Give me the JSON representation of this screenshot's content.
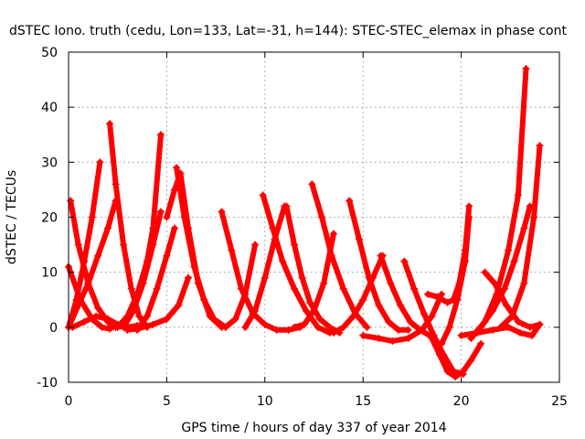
{
  "chart_data": {
    "type": "scatter",
    "title": "dSTEC Iono. truth (cedu, Lon=133, Lat=-31, h=144): STEC-STEC_elemax in phase cont",
    "xlabel": "GPS time / hours of day 337 of year 2014",
    "ylabel": "dSTEC  / TECUs",
    "xlim": [
      0,
      25
    ],
    "ylim": [
      -10,
      50
    ],
    "xticks": [
      0,
      5,
      10,
      15,
      20,
      25
    ],
    "yticks": [
      -10,
      0,
      10,
      20,
      30,
      40,
      50
    ],
    "grid": true,
    "marker": "+",
    "color": "#ff0000",
    "series": [
      {
        "x": [
          0.0,
          0.6,
          1.2,
          1.7,
          2.1,
          2.5
        ],
        "y": [
          11.0,
          5.0,
          1.5,
          0.0,
          -0.3,
          0.5
        ]
      },
      {
        "x": [
          0.0,
          0.5,
          1.0,
          1.5,
          2.0,
          2.4
        ],
        "y": [
          0.0,
          4.0,
          8.0,
          13.0,
          18.0,
          23.0
        ]
      },
      {
        "x": [
          0.1,
          0.5,
          1.0,
          1.5,
          2.0,
          2.4,
          2.8
        ],
        "y": [
          23.0,
          15.0,
          8.0,
          3.5,
          1.0,
          0.0,
          0.2
        ]
      },
      {
        "x": [
          0.0,
          0.4,
          0.8,
          1.2,
          1.6
        ],
        "y": [
          0.0,
          5.0,
          12.0,
          20.0,
          30.0
        ]
      },
      {
        "x": [
          0.2,
          0.8,
          1.4,
          2.0,
          2.5,
          3.0,
          3.5
        ],
        "y": [
          0.0,
          1.0,
          2.0,
          1.5,
          0.5,
          0.0,
          0.3
        ]
      },
      {
        "x": [
          2.1,
          2.4,
          2.8,
          3.2,
          3.6,
          4.0
        ],
        "y": [
          37.0,
          26.0,
          15.0,
          7.0,
          2.0,
          0.0
        ]
      },
      {
        "x": [
          2.5,
          3.0,
          3.5,
          4.0,
          4.3,
          4.7
        ],
        "y": [
          0.0,
          2.0,
          6.0,
          12.0,
          18.0,
          35.0
        ]
      },
      {
        "x": [
          2.8,
          3.3,
          3.8,
          4.3,
          4.7
        ],
        "y": [
          0.0,
          3.0,
          8.0,
          15.0,
          21.0
        ]
      },
      {
        "x": [
          3.0,
          3.6,
          4.3,
          5.0,
          5.6,
          6.1
        ],
        "y": [
          -0.5,
          -0.2,
          0.5,
          1.5,
          4.0,
          9.0
        ]
      },
      {
        "x": [
          3.5,
          4.0,
          4.5,
          5.0,
          5.4
        ],
        "y": [
          -0.5,
          2.0,
          7.0,
          13.0,
          18.0
        ]
      },
      {
        "x": [
          5.5,
          5.9,
          6.4,
          6.9,
          7.4,
          8.0
        ],
        "y": [
          29.0,
          20.0,
          11.0,
          5.0,
          1.5,
          0.0
        ]
      },
      {
        "x": [
          5.0,
          5.4,
          5.7,
          6.1,
          6.6,
          7.2,
          7.8
        ],
        "y": [
          20.0,
          25.0,
          28.0,
          18.0,
          8.0,
          2.0,
          0.0
        ]
      },
      {
        "x": [
          7.8,
          8.3,
          8.8,
          9.4,
          10.0,
          10.6,
          11.2,
          11.8
        ],
        "y": [
          21.0,
          14.0,
          7.0,
          2.5,
          0.5,
          -0.5,
          -0.5,
          0.0
        ]
      },
      {
        "x": [
          8.0,
          8.5,
          9.0,
          9.5
        ],
        "y": [
          0.0,
          1.5,
          6.0,
          15.0
        ]
      },
      {
        "x": [
          9.9,
          10.4,
          10.9,
          11.5,
          12.1,
          12.7,
          13.3
        ],
        "y": [
          24.0,
          18.0,
          12.0,
          7.0,
          3.0,
          0.0,
          -1.0
        ]
      },
      {
        "x": [
          9.0,
          9.5,
          10.0,
          10.5,
          11.0
        ],
        "y": [
          0.0,
          3.0,
          9.0,
          16.0,
          22.0
        ]
      },
      {
        "x": [
          11.1,
          11.5,
          11.9,
          12.3,
          12.8,
          13.3,
          13.8
        ],
        "y": [
          22.0,
          15.0,
          9.0,
          4.5,
          1.5,
          0.0,
          -1.0
        ]
      },
      {
        "x": [
          11.5,
          12.0,
          12.5,
          13.0,
          13.5
        ],
        "y": [
          0.0,
          0.5,
          3.0,
          8.0,
          17.0
        ]
      },
      {
        "x": [
          12.4,
          12.9,
          13.4,
          14.0,
          14.6,
          15.2
        ],
        "y": [
          26.0,
          20.0,
          13.0,
          7.0,
          2.5,
          0.0
        ]
      },
      {
        "x": [
          13.5,
          14.0,
          14.5,
          15.0,
          15.5,
          16.0
        ],
        "y": [
          -1.0,
          0.0,
          2.0,
          5.0,
          9.0,
          13.0
        ]
      },
      {
        "x": [
          14.3,
          14.8,
          15.3,
          15.8,
          16.3,
          16.8,
          17.3
        ],
        "y": [
          23.0,
          16.0,
          9.0,
          4.0,
          1.0,
          -0.5,
          -0.5
        ]
      },
      {
        "x": [
          15.0,
          15.8,
          16.5,
          17.3,
          18.0,
          18.5,
          19.0
        ],
        "y": [
          -1.5,
          -2.0,
          -2.5,
          -2.0,
          -0.5,
          2.0,
          6.0
        ]
      },
      {
        "x": [
          15.9,
          16.4,
          16.9,
          17.4,
          17.9,
          18.4
        ],
        "y": [
          13.0,
          8.0,
          4.0,
          1.0,
          -0.5,
          -1.5
        ]
      },
      {
        "x": [
          17.1,
          17.6,
          18.1,
          18.6,
          19.1,
          19.6,
          20.1
        ],
        "y": [
          12.0,
          7.0,
          2.5,
          -1.5,
          -5.0,
          -8.0,
          -8.5
        ]
      },
      {
        "x": [
          18.5,
          18.9,
          19.3,
          19.7,
          20.1,
          20.5,
          21.0
        ],
        "y": [
          -2.0,
          -5.0,
          -8.0,
          -9.0,
          -8.0,
          -6.0,
          -3.0
        ]
      },
      {
        "x": [
          18.3,
          18.8,
          19.3,
          19.6,
          19.9,
          20.2,
          20.4
        ],
        "y": [
          6.0,
          5.5,
          4.5,
          5.0,
          8.0,
          14.0,
          22.0
        ]
      },
      {
        "x": [
          19.0,
          19.4,
          19.8,
          20.2,
          20.4
        ],
        "y": [
          -3.0,
          0.0,
          5.0,
          12.0,
          20.0
        ]
      },
      {
        "x": [
          20.0,
          20.8,
          21.6,
          22.4,
          23.0,
          23.6,
          24.0
        ],
        "y": [
          -1.5,
          -1.0,
          -0.5,
          0.0,
          -1.0,
          -1.5,
          0.5
        ]
      },
      {
        "x": [
          20.5,
          21.2,
          21.8,
          22.4,
          22.9,
          23.3
        ],
        "y": [
          -2.0,
          1.0,
          6.0,
          14.0,
          24.0,
          47.0
        ]
      },
      {
        "x": [
          21.0,
          21.6,
          22.2,
          22.7,
          23.2,
          23.5
        ],
        "y": [
          0.0,
          3.0,
          7.0,
          12.0,
          18.0,
          22.0
        ]
      },
      {
        "x": [
          21.2,
          21.7,
          22.3,
          22.9,
          23.5,
          24.0
        ],
        "y": [
          10.0,
          8.0,
          4.0,
          1.0,
          0.0,
          0.5
        ]
      },
      {
        "x": [
          22.0,
          22.6,
          23.2,
          23.7,
          24.0
        ],
        "y": [
          0.0,
          2.0,
          8.0,
          20.0,
          33.0
        ]
      }
    ]
  }
}
